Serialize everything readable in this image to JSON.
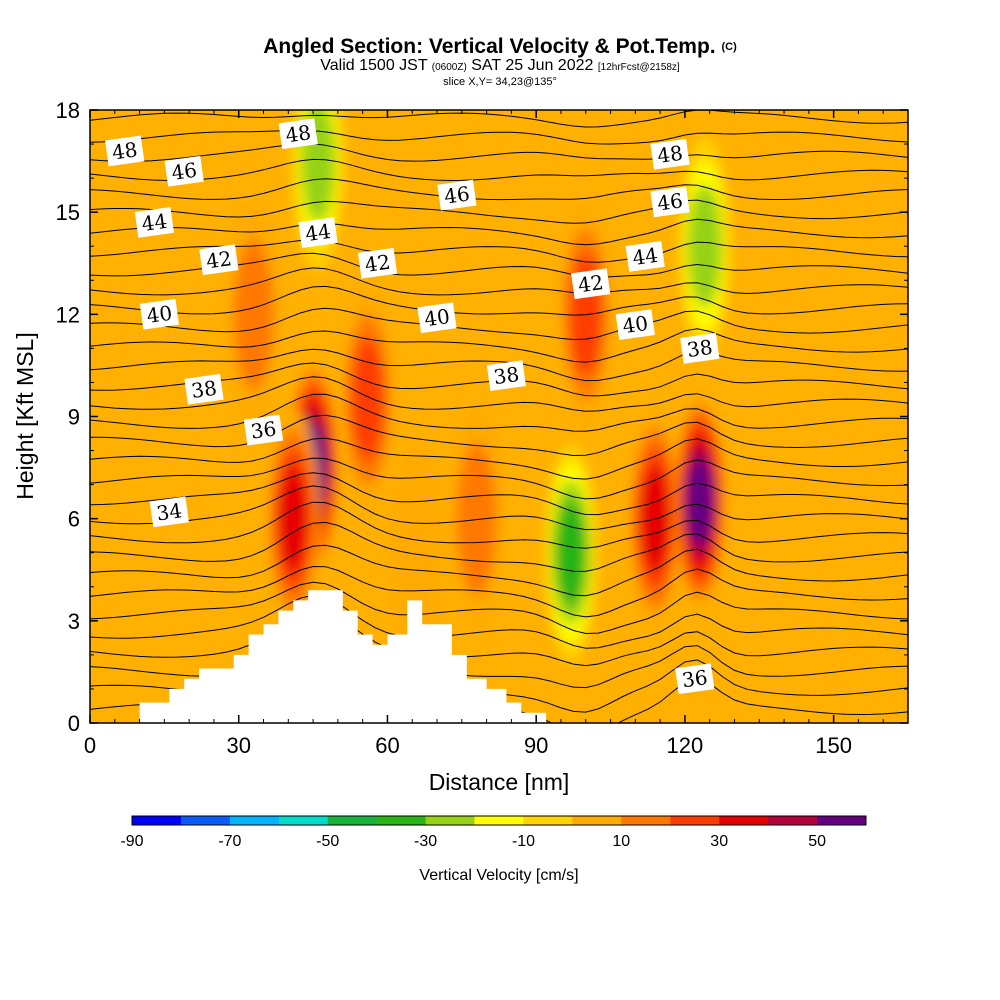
{
  "title": {
    "main": "Angled Section: Vertical Velocity & Pot.Temp.",
    "main_suffix": "(C)",
    "valid_prefix": "Valid 1500 JST",
    "valid_zulu": "(0600Z)",
    "valid_date": "SAT 25 Jun 2022",
    "valid_fcst": "[12hrFcst@2158z]",
    "slice": "slice X,Y= 34,23@135°"
  },
  "chart_data": {
    "type": "heatmap",
    "xlabel": "Distance [nm]",
    "ylabel": "Height [Kft MSL]",
    "xlim": [
      0,
      165
    ],
    "ylim": [
      0,
      18
    ],
    "x_ticks": [
      0,
      30,
      60,
      90,
      120,
      150
    ],
    "y_ticks": [
      0,
      3,
      6,
      9,
      12,
      15,
      18
    ],
    "fill_variable": "Vertical Velocity [cm/s]",
    "colorbar": {
      "title": "Vertical Velocity [cm/s]",
      "min": -90,
      "max": 60,
      "step": 10,
      "tick_labels": [
        "-90",
        "-70",
        "-50",
        "-30",
        "-10",
        "10",
        "30",
        "50"
      ],
      "tick_values": [
        -90,
        -70,
        -50,
        -30,
        -10,
        10,
        30,
        50
      ],
      "colors": [
        "#0000ff",
        "#0a5aff",
        "#00b4ff",
        "#00dcc8",
        "#14b43c",
        "#28b414",
        "#96d214",
        "#ffff00",
        "#ffd200",
        "#ffaa00",
        "#ff7800",
        "#ff3c00",
        "#e60000",
        "#b4003c",
        "#640082"
      ]
    },
    "velocity_features": [
      {
        "x": 45,
        "y": 7.5,
        "value": 55
      },
      {
        "x": 41,
        "y": 6.0,
        "value": 35
      },
      {
        "x": 56,
        "y": 9.5,
        "value": 25
      },
      {
        "x": 114,
        "y": 6.0,
        "value": 40
      },
      {
        "x": 123,
        "y": 6.5,
        "value": 55
      },
      {
        "x": 100,
        "y": 12.0,
        "value": 25
      },
      {
        "x": 33,
        "y": 12.0,
        "value": 15
      },
      {
        "x": 78,
        "y": 6.0,
        "value": 15
      },
      {
        "x": 97,
        "y": 5.0,
        "value": -35
      },
      {
        "x": 124,
        "y": 14.0,
        "value": -25
      },
      {
        "x": 46,
        "y": 16.5,
        "value": -25
      },
      {
        "x": 66,
        "y": 5.0,
        "value": 5
      }
    ],
    "terrain": {
      "x": [
        0,
        10,
        10,
        16,
        16,
        19,
        19,
        22,
        22,
        29,
        29,
        32,
        32,
        35,
        35,
        38,
        38,
        41,
        41,
        44,
        44,
        51,
        51,
        54,
        54,
        57,
        57,
        60,
        60,
        64,
        64,
        67,
        67,
        73,
        73,
        76,
        76,
        80,
        80,
        84,
        84,
        87,
        87,
        92,
        92,
        165
      ],
      "y": [
        0,
        0,
        0.6,
        0.6,
        1.0,
        1.0,
        1.3,
        1.3,
        1.6,
        1.6,
        2.0,
        2.0,
        2.6,
        2.6,
        2.9,
        2.9,
        3.3,
        3.3,
        3.6,
        3.6,
        3.9,
        3.9,
        3.3,
        3.3,
        2.6,
        2.6,
        2.3,
        2.3,
        2.6,
        2.6,
        3.6,
        3.6,
        2.9,
        2.9,
        2.0,
        2.0,
        1.3,
        1.3,
        1.0,
        1.0,
        0.6,
        0.6,
        0.3,
        0.3,
        0,
        0
      ]
    },
    "contour_variable": "Potential Temperature (C)",
    "contour_labels": [
      {
        "text": "48",
        "x": 7,
        "y": 16.8
      },
      {
        "text": "46",
        "x": 19,
        "y": 16.2
      },
      {
        "text": "44",
        "x": 13,
        "y": 14.7
      },
      {
        "text": "42",
        "x": 26,
        "y": 13.6
      },
      {
        "text": "40",
        "x": 14,
        "y": 12.0
      },
      {
        "text": "38",
        "x": 23,
        "y": 9.8
      },
      {
        "text": "36",
        "x": 35,
        "y": 8.6
      },
      {
        "text": "34",
        "x": 16,
        "y": 6.2
      },
      {
        "text": "48",
        "x": 42,
        "y": 17.3
      },
      {
        "text": "44",
        "x": 46,
        "y": 14.4
      },
      {
        "text": "42",
        "x": 58,
        "y": 13.5
      },
      {
        "text": "46",
        "x": 74,
        "y": 15.5
      },
      {
        "text": "40",
        "x": 70,
        "y": 11.9
      },
      {
        "text": "38",
        "x": 84,
        "y": 10.2
      },
      {
        "text": "42",
        "x": 101,
        "y": 12.9
      },
      {
        "text": "44",
        "x": 112,
        "y": 13.7
      },
      {
        "text": "40",
        "x": 110,
        "y": 11.7
      },
      {
        "text": "48",
        "x": 117,
        "y": 16.7
      },
      {
        "text": "46",
        "x": 117,
        "y": 15.3
      },
      {
        "text": "38",
        "x": 123,
        "y": 11.0
      },
      {
        "text": "36",
        "x": 122,
        "y": 1.3
      }
    ]
  }
}
